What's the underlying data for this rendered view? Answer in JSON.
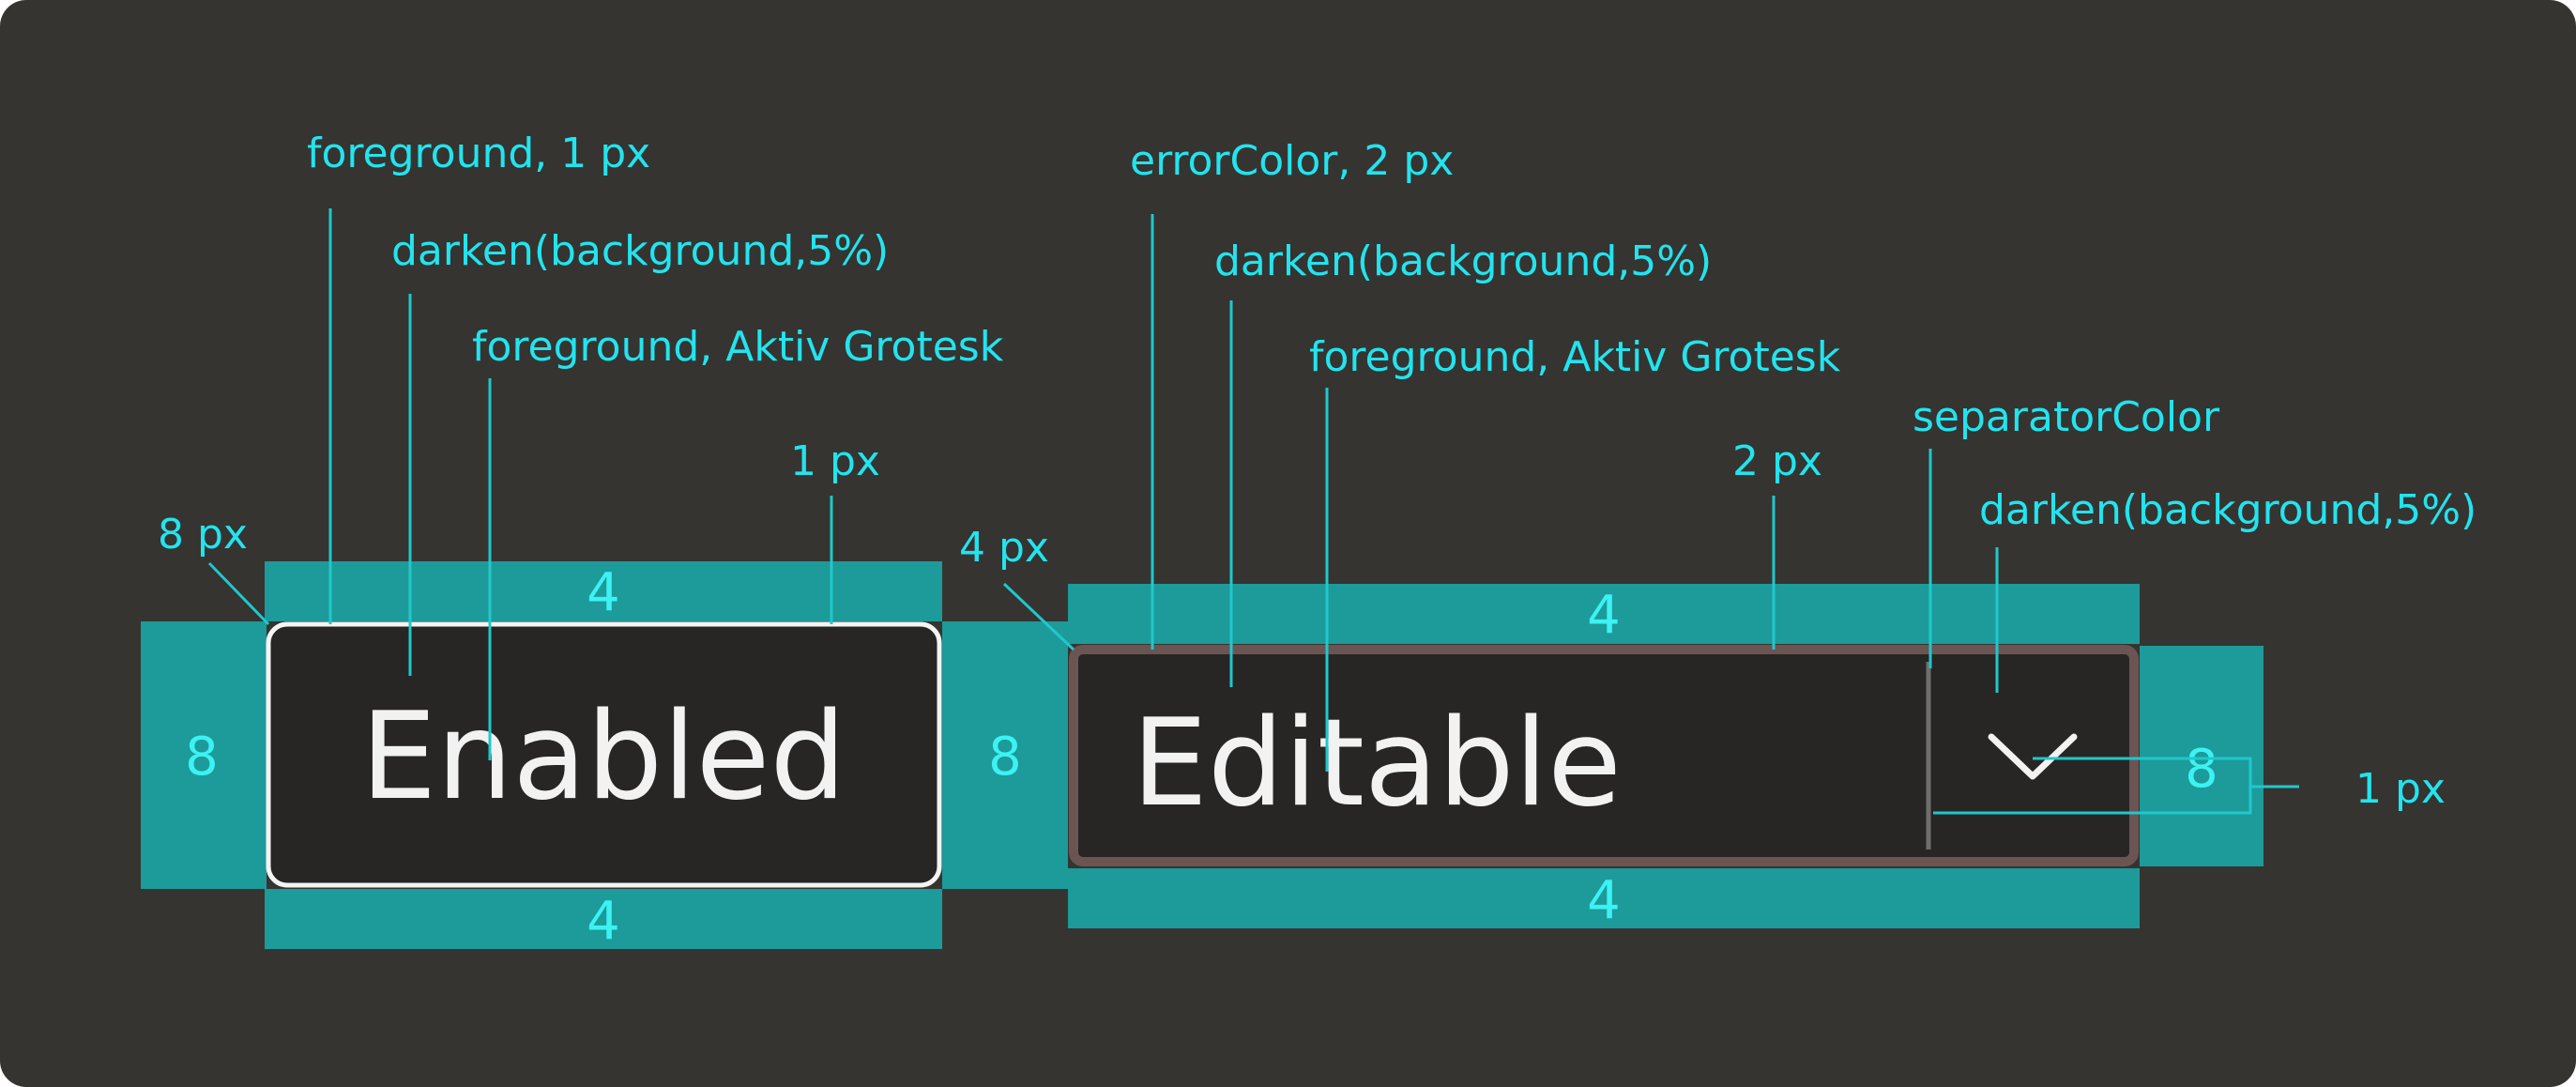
{
  "colors": {
    "panel": "#353431",
    "padding": "#1d9a9a",
    "annotation": "#22e4ee",
    "control_fill": "#272625",
    "enabled_border": "#f4f4f4",
    "error_border": "#6b5553",
    "separator": "#6e6e6e"
  },
  "enabled": {
    "label": "Enabled",
    "pad_top": "4",
    "pad_bottom": "4",
    "pad_left": "8",
    "pad_right": "8",
    "annotations": {
      "border": "foreground, 1 px",
      "fill": "darken(background,5%)",
      "text": "foreground, Aktiv Grotesk",
      "radius": "8 px",
      "border_width": "1 px"
    }
  },
  "editable": {
    "label": "Editable",
    "pad_top": "4",
    "pad_bottom": "4",
    "pad_right": "8",
    "chevron_icon": "chevron-down-icon",
    "annotations": {
      "border": "errorColor, 2 px",
      "fill": "darken(background,5%)",
      "text": "foreground, Aktiv Grotesk",
      "radius": "4 px",
      "border_width": "2 px",
      "separator": "separatorColor",
      "dropdown_fill": "darken(background,5%)",
      "separator_width": "1 px"
    }
  }
}
